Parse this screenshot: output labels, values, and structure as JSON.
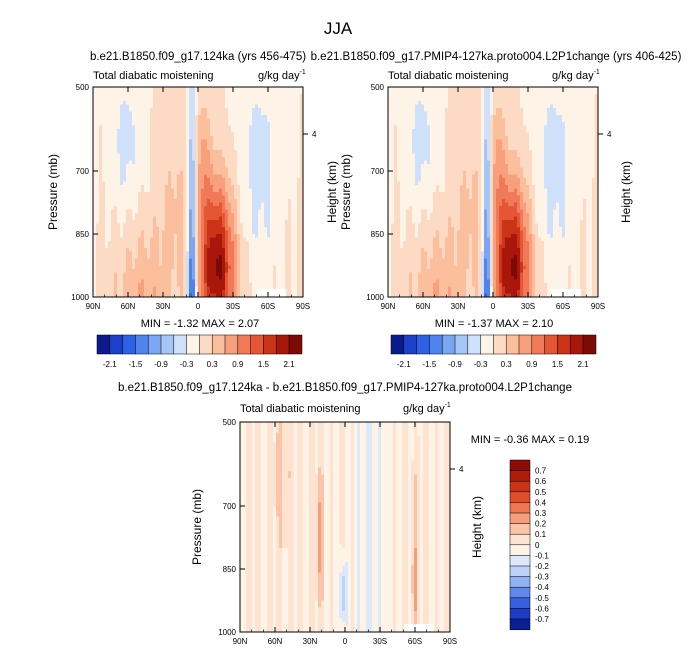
{
  "figure": {
    "title": "JJA"
  },
  "chart_data": [
    {
      "type": "heatmap",
      "title": "b.e21.B1850.f09_g17.124ka (yrs 456-475)",
      "left_label": "Total diabatic moistening",
      "units": "g/kg day",
      "units_exp": "-1",
      "xlabel": "",
      "ylabel": "Pressure (mb)",
      "ylabel_right": "Height (km)",
      "x_ticks": [
        "90N",
        "60N",
        "30N",
        "0",
        "30S",
        "60S",
        "90S"
      ],
      "y_ticks": [
        "500",
        "700",
        "850",
        "1000"
      ],
      "right_ticks": [
        "4"
      ],
      "ylim": [
        1000,
        500
      ],
      "xlim": [
        90,
        -90
      ],
      "min": -1.32,
      "max": 2.07,
      "minmax_text": "MIN = -1.32  MAX =  2.07",
      "field": "wide"
    },
    {
      "type": "heatmap",
      "title": "b.e21.B1850.f09_g17.PMIP4-127ka.proto004.L2P1change (yrs 406-425)",
      "left_label": "Total diabatic moistening",
      "units": "g/kg day",
      "units_exp": "-1",
      "xlabel": "",
      "ylabel": "Pressure (mb)",
      "ylabel_right": "Height (km)",
      "x_ticks": [
        "90N",
        "60N",
        "30N",
        "0",
        "30S",
        "60S",
        "90S"
      ],
      "y_ticks": [
        "500",
        "700",
        "850",
        "1000"
      ],
      "right_ticks": [
        "4"
      ],
      "ylim": [
        1000,
        500
      ],
      "xlim": [
        90,
        -90
      ],
      "min": -1.37,
      "max": 2.1,
      "minmax_text": "MIN = -1.37  MAX =  2.10",
      "field": "wide"
    },
    {
      "type": "heatmap",
      "title": "b.e21.B1850.f09_g17.124ka - b.e21.B1850.f09_g17.PMIP4-127ka.proto004.L2P1change",
      "left_label": "Total diabatic moistening",
      "units": "g/kg day",
      "units_exp": "-1",
      "xlabel": "",
      "ylabel": "Pressure (mb)",
      "ylabel_right": "Height (km)",
      "x_ticks": [
        "90N",
        "60N",
        "30N",
        "0",
        "30S",
        "60S",
        "90S"
      ],
      "y_ticks": [
        "500",
        "700",
        "850",
        "1000"
      ],
      "right_ticks": [
        "4"
      ],
      "ylim": [
        1000,
        500
      ],
      "xlim": [
        90,
        -90
      ],
      "min": -0.36,
      "max": 0.19,
      "minmax_text": "MIN = -0.36  MAX =  0.19",
      "field": "diff"
    }
  ],
  "colorbars": {
    "wide": {
      "labels": [
        "-2.1",
        "-1.5",
        "-0.9",
        "-0.3",
        "0.3",
        "0.9",
        "1.5",
        "2.1"
      ],
      "levels": [
        -2.1,
        -1.8,
        -1.5,
        -1.2,
        -0.9,
        -0.6,
        -0.3,
        0,
        0.3,
        0.6,
        0.9,
        1.2,
        1.5,
        1.8,
        2.1
      ],
      "colors": [
        "#0a1a8c",
        "#1e3fc8",
        "#2e62e6",
        "#4f84ee",
        "#7aa6f4",
        "#a6c6f8",
        "#cfe0fb",
        "#fdf3e6",
        "#fddac4",
        "#fcbf9e",
        "#f8a07b",
        "#f07a57",
        "#e45634",
        "#cc3418",
        "#a8170a",
        "#7d0b05"
      ]
    },
    "diff": {
      "labels": [
        "0.7",
        "0.6",
        "0.5",
        "0.4",
        "0.3",
        "0.2",
        "0.1",
        "0",
        "-0.1",
        "-0.2",
        "-0.3",
        "-0.4",
        "-0.5",
        "-0.6",
        "-0.7"
      ],
      "colors": [
        "#8b0d05",
        "#b01c0b",
        "#cc3418",
        "#e04e2b",
        "#ee7651",
        "#f59e7d",
        "#fbc3a8",
        "#fde3d0",
        "#fdf3e6",
        "#dde9fb",
        "#bcd2f8",
        "#90b2f3",
        "#6189ec",
        "#3761dc",
        "#1c3cc3",
        "#0b1e96"
      ]
    }
  }
}
